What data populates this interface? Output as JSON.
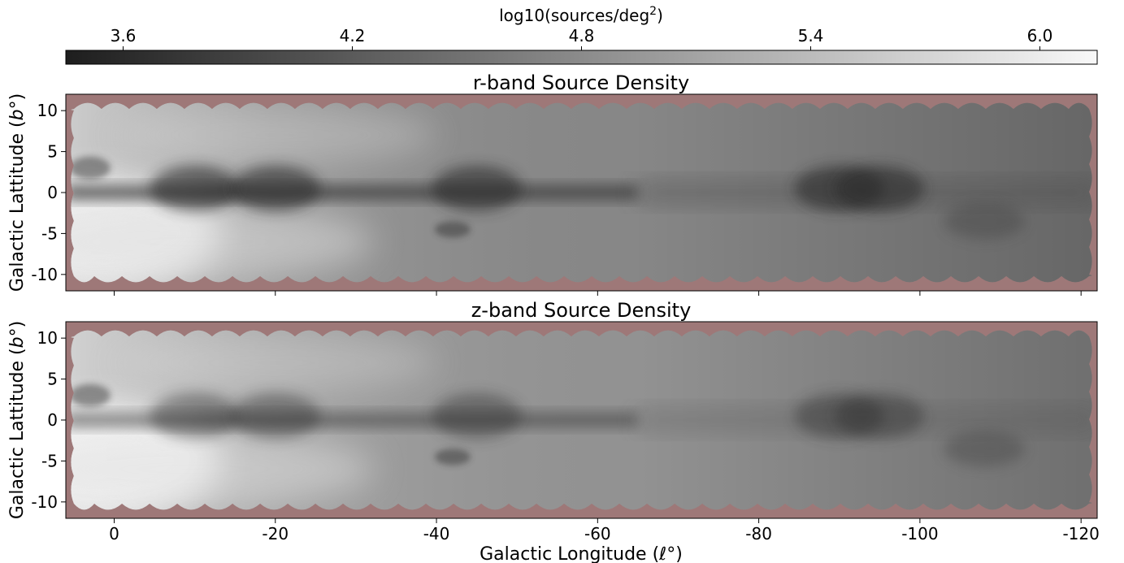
{
  "chart_data": {
    "type": "heatmap",
    "colorbar": {
      "label": "log10(sources/deg²)",
      "label_main": "log10(sources/deg",
      "label_sup": "2",
      "label_close": ")",
      "range": [
        3.45,
        6.15
      ],
      "ticks": [
        3.6,
        4.2,
        4.8,
        5.4,
        6.0
      ],
      "tick_labels": [
        "3.6",
        "4.2",
        "4.8",
        "5.4",
        "6.0"
      ],
      "colormap": "gray",
      "low_color": "#1e1e1e",
      "high_color": "#f8f8f8",
      "orientation": "horizontal",
      "position": "top"
    },
    "panels": [
      {
        "title": "r-band Source Density",
        "ylabel": "Galactic Latitude (b°)",
        "ylabel_main": "Galactic Lattitude (",
        "ylabel_var": "b",
        "ylabel_close": "°)",
        "xlim": [
          6,
          -122
        ],
        "ylim": [
          -12,
          12
        ],
        "yticks": [
          10,
          5,
          0,
          -5,
          -10
        ],
        "ytick_labels": [
          "10",
          "5",
          "0",
          "-5",
          "-10"
        ],
        "xtick_labels_shown": false
      },
      {
        "title": "z-band Source Density",
        "ylabel": "Galactic Latitude (b°)",
        "ylabel_main": "Galactic Lattitude (",
        "ylabel_var": "b",
        "ylabel_close": "°)",
        "xlim": [
          6,
          -122
        ],
        "ylim": [
          -12,
          12
        ],
        "yticks": [
          10,
          5,
          0,
          -5,
          -10
        ],
        "ytick_labels": [
          "10",
          "5",
          "0",
          "-5",
          "-10"
        ],
        "xtick_labels_shown": true
      }
    ],
    "xticks": [
      0,
      -20,
      -40,
      -60,
      -80,
      -100,
      -120
    ],
    "xtick_labels": [
      "0",
      "-20",
      "-40",
      "-60",
      "-80",
      "-100",
      "-120"
    ],
    "xlabel": "Galactic Longitude (ℓ°)",
    "xlabel_main": "Galactic Longitude (",
    "xlabel_var": "ℓ",
    "xlabel_close": "°)",
    "no_data_color": "#9e7878",
    "footprint": {
      "lon_range": [
        5,
        -121
      ],
      "lat_range": [
        -11,
        11
      ]
    },
    "features": {
      "bright_region": {
        "lon": 2,
        "lat": -5
      },
      "dark_dust_lane_lat": 0,
      "dark_complexes_lon": [
        -10,
        -20,
        -45,
        -90,
        -95
      ]
    }
  }
}
